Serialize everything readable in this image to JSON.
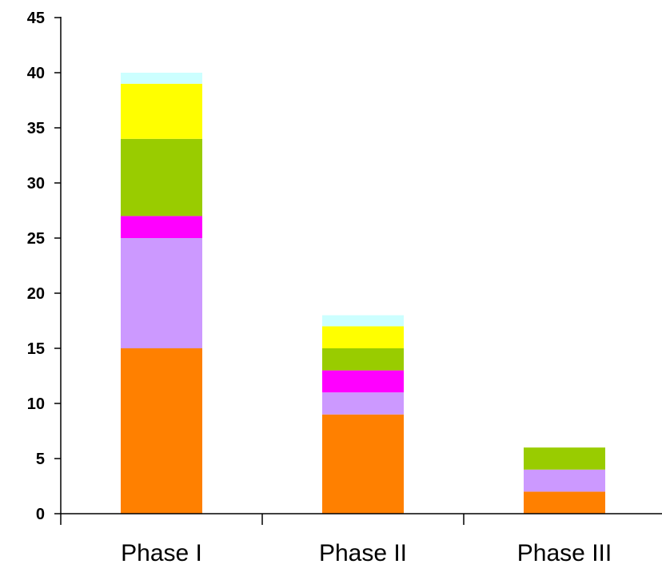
{
  "chart_data": {
    "type": "bar",
    "stacked": true,
    "categories": [
      "Phase I",
      "Phase II",
      "Phase III"
    ],
    "series": [
      {
        "color": "#ff8000",
        "values": [
          15,
          9,
          2
        ]
      },
      {
        "color": "#cc99ff",
        "values": [
          10,
          2,
          2
        ]
      },
      {
        "color": "#ff00ff",
        "values": [
          2,
          2,
          0
        ]
      },
      {
        "color": "#99cc00",
        "values": [
          7,
          2,
          2
        ]
      },
      {
        "color": "#ffff00",
        "values": [
          5,
          2,
          0
        ]
      },
      {
        "color": "#ccffff",
        "values": [
          1,
          1,
          0
        ]
      }
    ],
    "ylim": [
      0,
      45
    ],
    "yticks": [
      "0",
      "5",
      "10",
      "15",
      "20",
      "25",
      "30",
      "35",
      "40",
      "45"
    ],
    "grid": false,
    "legend": "none"
  }
}
